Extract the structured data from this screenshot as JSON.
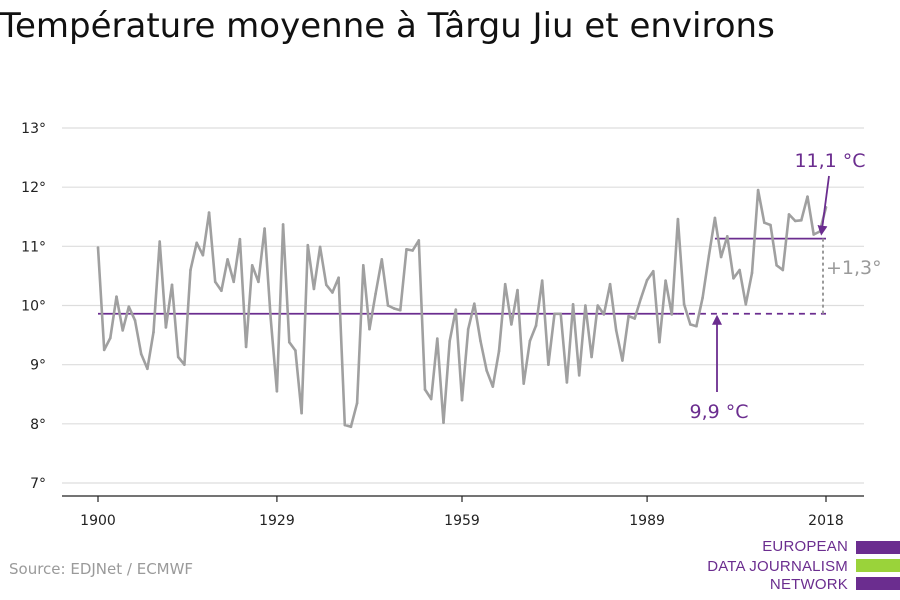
{
  "title": "Température moyenne à Târgu Jiu et environs",
  "source": "Source: EDJNet / ECMWF",
  "logo": {
    "lines": [
      "EUROPEAN",
      "DATA JOURNALISM",
      "NETWORK"
    ],
    "colors": [
      "#6b2d8f",
      "#9ad33a",
      "#6b2d8f"
    ]
  },
  "colors": {
    "series": "#a0a0a0",
    "average": "#6b2d8f",
    "grid": "#dddddd",
    "axis": "#222222",
    "annotation_grey": "#9a9a9a"
  },
  "chart_data": {
    "type": "line",
    "title": "Température moyenne à Târgu Jiu et environs",
    "xlabel": "",
    "ylabel": "",
    "xlim": [
      1900,
      2018
    ],
    "ylim": [
      7,
      13
    ],
    "grid": true,
    "xticks": [
      1900,
      1929,
      1959,
      1989,
      2018
    ],
    "xtick_labels": [
      "1900",
      "1929",
      "1959",
      "1989",
      "2018"
    ],
    "yticks": [
      7,
      8,
      9,
      10,
      11,
      12,
      13
    ],
    "ytick_labels": [
      "7°",
      "8°",
      "9°",
      "10°",
      "11°",
      "12°",
      "13°"
    ],
    "x": [
      1900,
      1901,
      1902,
      1903,
      1904,
      1905,
      1906,
      1907,
      1908,
      1909,
      1910,
      1911,
      1912,
      1913,
      1914,
      1915,
      1916,
      1917,
      1918,
      1919,
      1920,
      1921,
      1922,
      1923,
      1924,
      1925,
      1926,
      1927,
      1928,
      1929,
      1930,
      1931,
      1932,
      1933,
      1934,
      1935,
      1936,
      1937,
      1938,
      1939,
      1940,
      1941,
      1942,
      1943,
      1944,
      1945,
      1946,
      1947,
      1948,
      1949,
      1950,
      1951,
      1952,
      1953,
      1954,
      1955,
      1956,
      1957,
      1958,
      1959,
      1960,
      1961,
      1962,
      1963,
      1964,
      1965,
      1966,
      1967,
      1968,
      1969,
      1970,
      1971,
      1972,
      1973,
      1974,
      1975,
      1976,
      1977,
      1978,
      1979,
      1980,
      1981,
      1982,
      1983,
      1984,
      1985,
      1986,
      1987,
      1988,
      1989,
      1990,
      1991,
      1992,
      1993,
      1994,
      1995,
      1996,
      1997,
      1998,
      1999,
      2000,
      2001,
      2002,
      2003,
      2004,
      2005,
      2006,
      2007,
      2008,
      2009,
      2010,
      2011,
      2012,
      2013,
      2014,
      2015,
      2016,
      2017,
      2018
    ],
    "series": [
      {
        "values": [
          10.98,
          9.25,
          9.45,
          10.15,
          9.58,
          9.98,
          9.75,
          9.18,
          8.93,
          9.55,
          11.08,
          9.63,
          10.35,
          9.13,
          9.0,
          10.6,
          11.06,
          10.85,
          11.57,
          10.4,
          10.25,
          10.78,
          10.4,
          11.12,
          9.3,
          10.68,
          10.4,
          11.3,
          9.78,
          8.55,
          11.37,
          9.38,
          9.24,
          8.18,
          11.02,
          10.28,
          10.99,
          10.35,
          10.22,
          10.47,
          7.98,
          7.95,
          8.35,
          10.68,
          9.6,
          10.2,
          10.78,
          10.0,
          9.95,
          9.92,
          10.95,
          10.93,
          11.1,
          8.58,
          8.42,
          9.44,
          8.02,
          9.4,
          9.93,
          8.4,
          9.6,
          10.03,
          9.4,
          8.9,
          8.63,
          9.23,
          10.36,
          9.68,
          10.26,
          8.68,
          9.4,
          9.66,
          10.42,
          9.0,
          9.86,
          9.86,
          8.7,
          10.02,
          8.82,
          10.0,
          9.13,
          10.0,
          9.85,
          10.36,
          9.58,
          9.07,
          9.82,
          9.78,
          10.12,
          10.43,
          10.58,
          9.38,
          10.42,
          9.85,
          11.46,
          10.02,
          9.68,
          9.65,
          10.13,
          10.83,
          11.48,
          10.82,
          11.17,
          10.46,
          10.6,
          10.02,
          10.55,
          11.95,
          11.4,
          11.36,
          10.68,
          10.6,
          11.54,
          11.43,
          11.44,
          11.84,
          11.2,
          11.25,
          11.66
        ]
      }
    ],
    "reference_lines": [
      {
        "label": "9,9 °C",
        "value": 9.86,
        "from": 1900,
        "to": 2018
      },
      {
        "label": "11,1 °C",
        "value": 11.13,
        "from": 2000,
        "to": 2018
      }
    ],
    "annotations": [
      {
        "text": "11,1 °C"
      },
      {
        "text": "9,9 °C"
      },
      {
        "text": "+1,3°"
      }
    ]
  }
}
